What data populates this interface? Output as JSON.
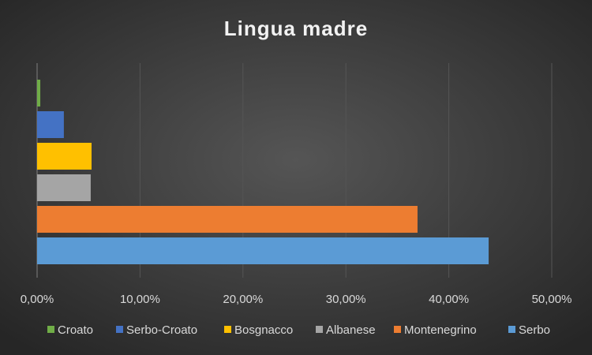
{
  "chart_data": {
    "type": "hbar",
    "title": "Lingua madre",
    "series": [
      {
        "name": "Croato",
        "color": "#70ad47",
        "values": [
          0.31
        ]
      },
      {
        "name": "Serbo-Croato",
        "color": "#4472c4",
        "values": [
          2.6
        ]
      },
      {
        "name": "Bosgnacco",
        "color": "#ffc000",
        "values": [
          5.29
        ]
      },
      {
        "name": "Albanese",
        "color": "#a5a5a5",
        "values": [
          5.21
        ]
      },
      {
        "name": "Montenegrino",
        "color": "#ed7d31",
        "values": [
          36.96
        ]
      },
      {
        "name": "Serbo",
        "color": "#5b9bd5",
        "values": [
          43.87
        ]
      }
    ],
    "xlim": [
      0,
      50
    ],
    "xticks": [
      {
        "value": 0,
        "label": "0,00%"
      },
      {
        "value": 10,
        "label": "10,00%"
      },
      {
        "value": 20,
        "label": "20,00%"
      },
      {
        "value": 30,
        "label": "30,00%"
      },
      {
        "value": 40,
        "label": "40,00%"
      },
      {
        "value": 50,
        "label": "50,00%"
      }
    ],
    "grid": true,
    "legend": "bottom"
  }
}
